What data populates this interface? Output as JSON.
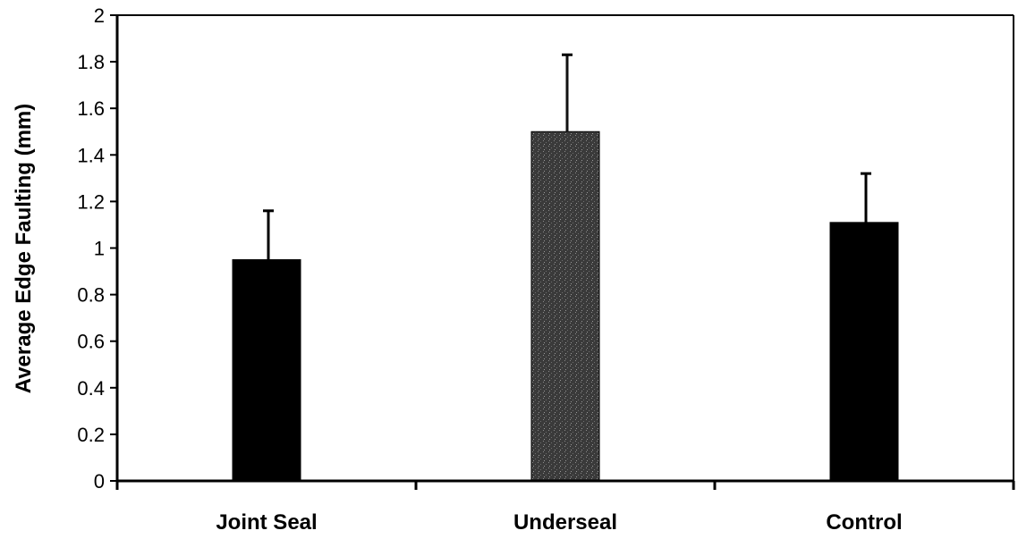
{
  "chart_data": {
    "type": "bar",
    "title": "",
    "xlabel": "",
    "ylabel": "Average Edge Faulting (mm)",
    "categories": [
      "Joint Seal",
      "Underseal",
      "Control"
    ],
    "values": [
      0.95,
      1.5,
      1.11
    ],
    "error_upper": [
      1.16,
      1.83,
      1.32
    ],
    "bar_colors": [
      "#000000",
      "#3c3c3c",
      "#000000"
    ],
    "ylim": [
      0,
      2
    ],
    "yticks": [
      "0",
      "0.2",
      "0.4",
      "0.6",
      "0.8",
      "1",
      "1.2",
      "1.4",
      "1.6",
      "1.8",
      "2"
    ],
    "grid": false,
    "legend": "none"
  }
}
